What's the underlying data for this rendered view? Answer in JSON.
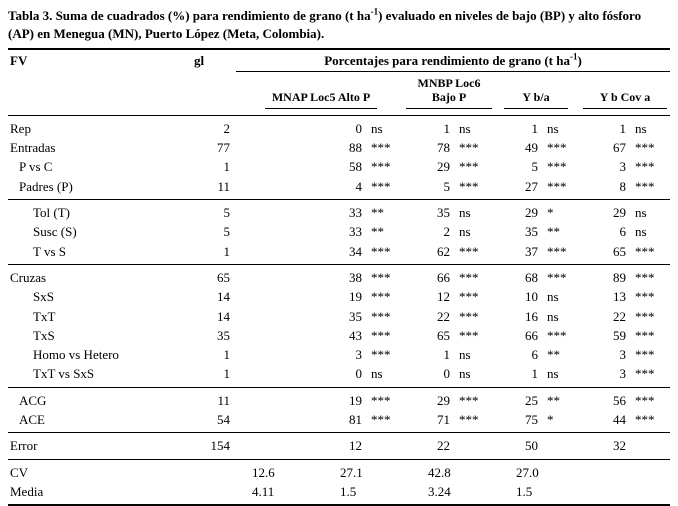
{
  "title": {
    "part1": "Tabla 3. Suma de cuadrados (%) para rendimiento de grano (t ha",
    "sup": "-1",
    "part2": ") evaluado en niveles de bajo (BP) y alto fósforo (AP) en Menegua (MN), Puerto López (Meta, Colombia)."
  },
  "header": {
    "fv": "FV",
    "gl": "gl",
    "span_part1": "Porcentajes para rendimiento de grano (t ha",
    "span_sup": "-1",
    "span_part2": ")",
    "groups": [
      "MNAP Loc5 Alto P",
      "MNBP Loc6 Bajo P",
      "Y b/a",
      "Y b Cov a"
    ]
  },
  "table": {
    "sections": [
      {
        "rows": [
          {
            "fv": "Rep",
            "indent": 0,
            "gl": "2",
            "cells": [
              [
                "0",
                "ns"
              ],
              [
                "1",
                "ns"
              ],
              [
                "1",
                "ns"
              ],
              [
                "1",
                "ns"
              ]
            ]
          },
          {
            "fv": "Entradas",
            "indent": 0,
            "gl": "77",
            "cells": [
              [
                "88",
                "***"
              ],
              [
                "78",
                "***"
              ],
              [
                "49",
                "***"
              ],
              [
                "67",
                "***"
              ]
            ]
          },
          {
            "fv": "P vs C",
            "indent": 1,
            "gl": "1",
            "cells": [
              [
                "58",
                "***"
              ],
              [
                "29",
                "***"
              ],
              [
                "5",
                "***"
              ],
              [
                "3",
                "***"
              ]
            ]
          },
          {
            "fv": "Padres (P)",
            "indent": 1,
            "gl": "11",
            "cells": [
              [
                "4",
                "***"
              ],
              [
                "5",
                "***"
              ],
              [
                "27",
                "***"
              ],
              [
                "8",
                "***"
              ]
            ]
          }
        ]
      },
      {
        "rows": [
          {
            "fv": "Tol (T)",
            "indent": 2,
            "gl": "5",
            "cells": [
              [
                "33",
                "**"
              ],
              [
                "35",
                "ns"
              ],
              [
                "29",
                "*"
              ],
              [
                "29",
                "ns"
              ]
            ]
          },
          {
            "fv": "Susc (S)",
            "indent": 2,
            "gl": "5",
            "cells": [
              [
                "33",
                "**"
              ],
              [
                "2",
                "ns"
              ],
              [
                "35",
                "**"
              ],
              [
                "6",
                "ns"
              ]
            ]
          },
          {
            "fv": "T vs S",
            "indent": 2,
            "gl": "1",
            "cells": [
              [
                "34",
                "***"
              ],
              [
                "62",
                "***"
              ],
              [
                "37",
                "***"
              ],
              [
                "65",
                "***"
              ]
            ]
          }
        ]
      },
      {
        "rows": [
          {
            "fv": "Cruzas",
            "indent": 0,
            "gl": "65",
            "cells": [
              [
                "38",
                "***"
              ],
              [
                "66",
                "***"
              ],
              [
                "68",
                "***"
              ],
              [
                "89",
                "***"
              ]
            ]
          },
          {
            "fv": "SxS",
            "indent": 2,
            "gl": "14",
            "cells": [
              [
                "19",
                "***"
              ],
              [
                "12",
                "***"
              ],
              [
                "10",
                "ns"
              ],
              [
                "13",
                "***"
              ]
            ]
          },
          {
            "fv": "TxT",
            "indent": 2,
            "gl": "14",
            "cells": [
              [
                "35",
                "***"
              ],
              [
                "22",
                "***"
              ],
              [
                "16",
                "ns"
              ],
              [
                "22",
                "***"
              ]
            ]
          },
          {
            "fv": "TxS",
            "indent": 2,
            "gl": "35",
            "cells": [
              [
                "43",
                "***"
              ],
              [
                "65",
                "***"
              ],
              [
                "66",
                "***"
              ],
              [
                "59",
                "***"
              ]
            ]
          },
          {
            "fv": "Homo vs Hetero",
            "indent": 2,
            "gl": "1",
            "cells": [
              [
                "3",
                "***"
              ],
              [
                "1",
                "ns"
              ],
              [
                "6",
                "**"
              ],
              [
                "3",
                "***"
              ]
            ]
          },
          {
            "fv": "TxT vs SxS",
            "indent": 2,
            "gl": "1",
            "cells": [
              [
                "0",
                "ns"
              ],
              [
                "0",
                "ns"
              ],
              [
                "1",
                "ns"
              ],
              [
                "3",
                "***"
              ]
            ]
          }
        ]
      },
      {
        "rows": [
          {
            "fv": "ACG",
            "indent": 1,
            "gl": "11",
            "cells": [
              [
                "19",
                "***"
              ],
              [
                "29",
                "***"
              ],
              [
                "25",
                "**"
              ],
              [
                "56",
                "***"
              ]
            ]
          },
          {
            "fv": "ACE",
            "indent": 1,
            "gl": "54",
            "cells": [
              [
                "81",
                "***"
              ],
              [
                "71",
                "***"
              ],
              [
                "75",
                "*"
              ],
              [
                "44",
                "***"
              ]
            ]
          }
        ]
      },
      {
        "rows": [
          {
            "fv": "Error",
            "indent": 0,
            "gl": "154",
            "cells": [
              [
                "12",
                ""
              ],
              [
                "22",
                ""
              ],
              [
                "50",
                ""
              ],
              [
                "32",
                ""
              ]
            ]
          }
        ]
      },
      {
        "rows": [
          {
            "fv": "CV",
            "indent": 0,
            "gl": "",
            "wide": [
              "12.6",
              "27.1",
              "42.8",
              "27.0"
            ]
          },
          {
            "fv": "Media",
            "indent": 0,
            "gl": "",
            "wide": [
              "4.11",
              "1.5",
              "3.24",
              "1.5"
            ]
          }
        ]
      }
    ]
  }
}
